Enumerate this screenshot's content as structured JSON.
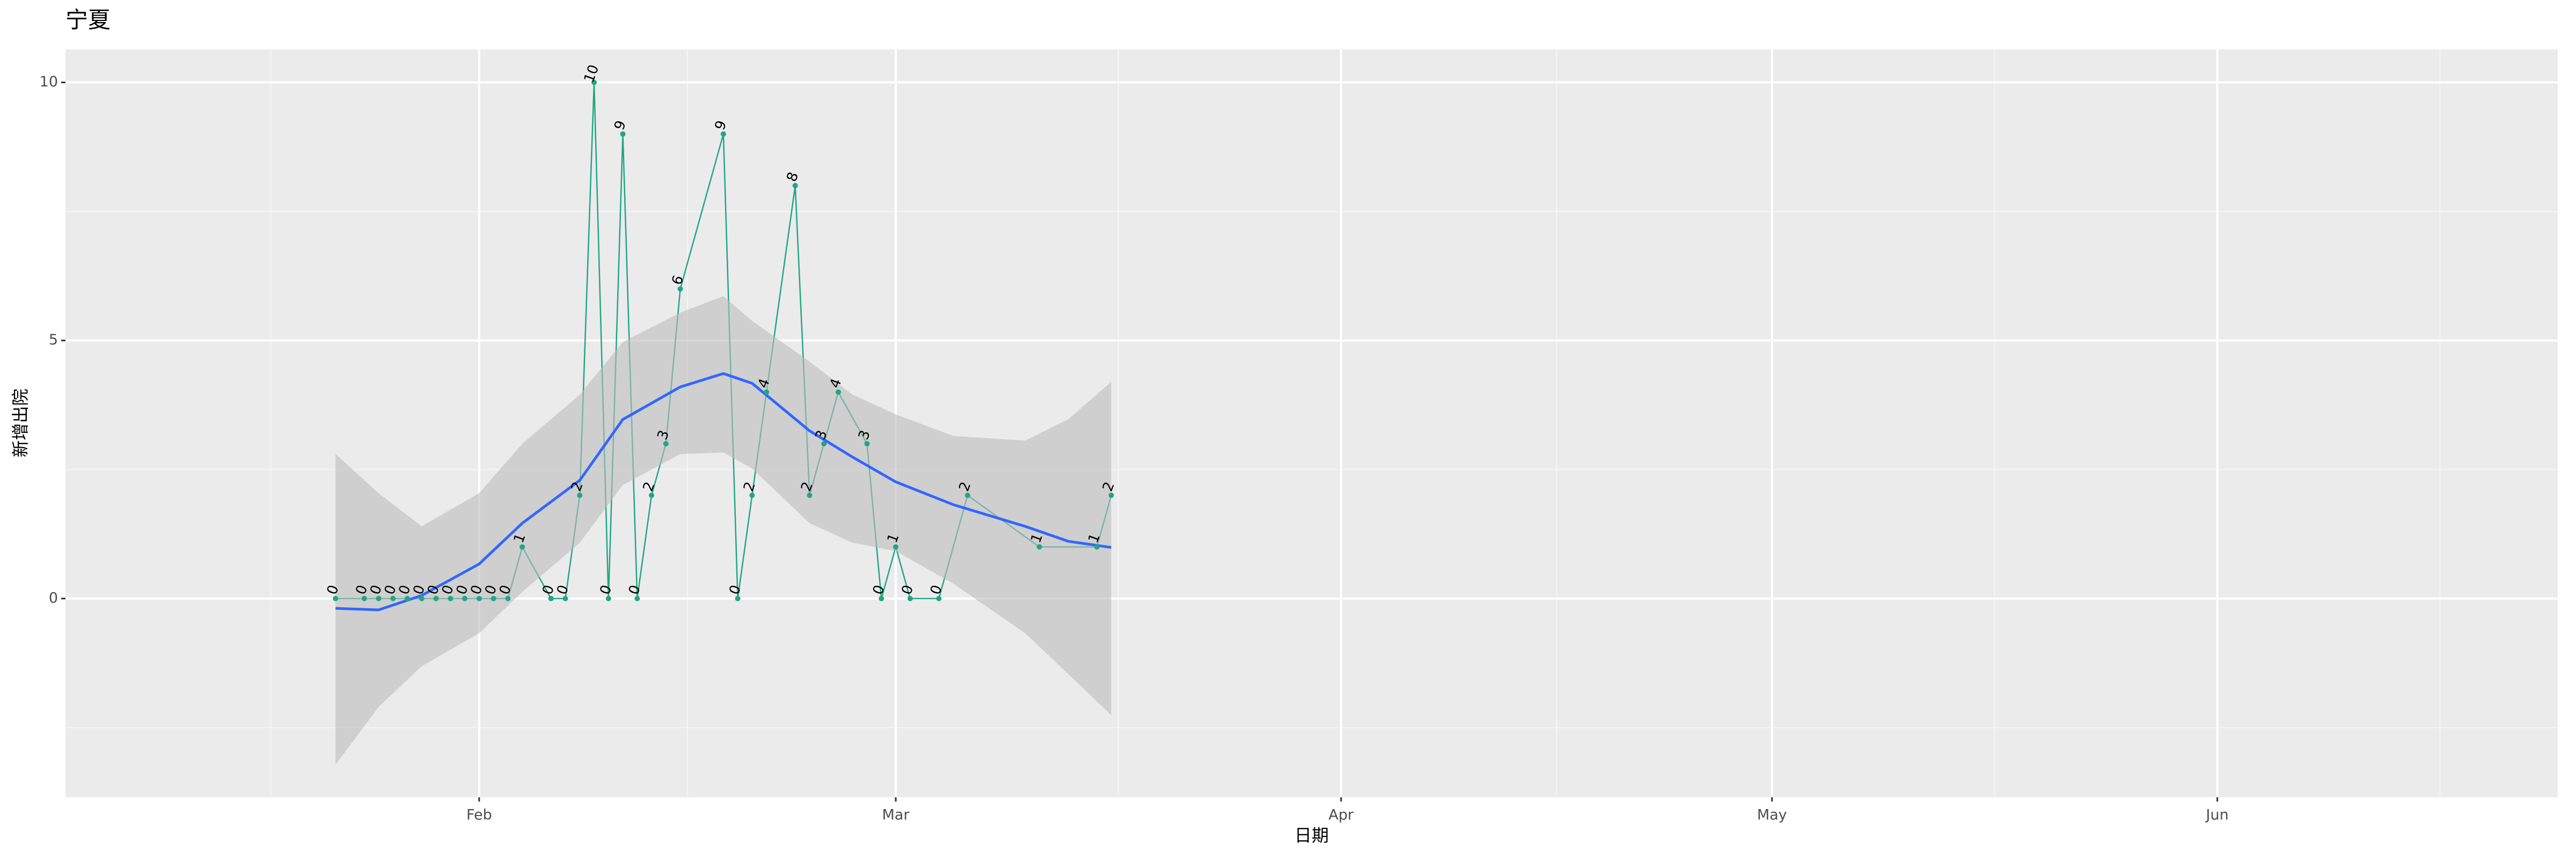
{
  "chart_data": {
    "type": "line",
    "title": "宁夏",
    "x_label": "日期",
    "y_label": "新增出院",
    "x": [
      22,
      24,
      25,
      26,
      27,
      28,
      29,
      30,
      31,
      32,
      33,
      34,
      35,
      37,
      38,
      39,
      40,
      41,
      42,
      43,
      44,
      45,
      46,
      49,
      50,
      51,
      52,
      54,
      55,
      56,
      57,
      59,
      60,
      61,
      62,
      64,
      66,
      71,
      75,
      76
    ],
    "values": [
      0,
      0,
      0,
      0,
      0,
      0,
      0,
      0,
      0,
      0,
      0,
      0,
      1,
      0,
      0,
      2,
      10,
      0,
      9,
      0,
      2,
      3,
      6,
      9,
      0,
      2,
      4,
      8,
      2,
      3,
      4,
      3,
      0,
      1,
      0,
      0,
      2,
      1,
      1,
      2
    ],
    "color": "#21a685",
    "smooth": {
      "color": "#3366ff",
      "band_color": "#bdbdbd",
      "x": [
        22,
        25,
        28,
        32,
        35,
        39,
        42,
        46,
        49,
        51,
        55,
        58,
        61,
        65,
        70,
        73,
        76
      ],
      "values": [
        -0.19,
        -0.22,
        0.06,
        0.67,
        1.46,
        2.29,
        3.47,
        4.1,
        4.36,
        4.17,
        3.25,
        2.74,
        2.26,
        1.82,
        1.4,
        1.11,
        0.99
      ],
      "lower": [
        -3.22,
        -2.1,
        -1.31,
        -0.67,
        0.13,
        1.08,
        2.2,
        2.8,
        2.83,
        2.52,
        1.46,
        1.08,
        0.92,
        0.29,
        -0.67,
        -1.46,
        -2.26
      ],
      "upper": [
        2.8,
        2.04,
        1.4,
        2.04,
        3.0,
        3.95,
        4.97,
        5.54,
        5.86,
        5.38,
        4.59,
        3.95,
        3.57,
        3.15,
        3.06,
        3.47,
        4.2
      ]
    },
    "xlim": [
      3.2,
      176.7
    ],
    "xticks": [
      {
        "value": 32,
        "label": "Feb"
      },
      {
        "value": 61,
        "label": "Mar"
      },
      {
        "value": 92,
        "label": "Apr"
      },
      {
        "value": 122,
        "label": "May"
      },
      {
        "value": 153,
        "label": "Jun"
      }
    ],
    "ylim": [
      -3.85,
      10.64
    ],
    "yticks": [
      0,
      5,
      10
    ],
    "grid": true
  }
}
